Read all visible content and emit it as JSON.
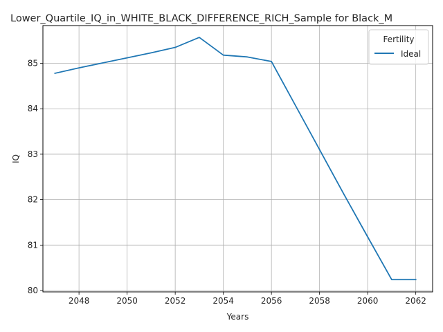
{
  "chart_data": {
    "type": "line",
    "title": "Lower_Quartile_IQ_in_WHITE_BLACK_DIFFERENCE_RICH_Sample for Black_M",
    "xlabel": "Years",
    "ylabel": "IQ",
    "xlim": [
      2046.5,
      2062.7
    ],
    "ylim": [
      79.97,
      85.83
    ],
    "xticks": [
      2048,
      2050,
      2052,
      2054,
      2056,
      2058,
      2060,
      2062
    ],
    "yticks": [
      80,
      81,
      82,
      83,
      84,
      85
    ],
    "grid": true,
    "legend": {
      "title": "Fertility",
      "placement": "upper-right"
    },
    "series": [
      {
        "name": "Ideal",
        "color": "#1f77b4",
        "x": [
          2047,
          2048,
          2049,
          2050,
          2051,
          2052,
          2053,
          2054,
          2055,
          2056,
          2057,
          2058,
          2059,
          2060,
          2061,
          2062
        ],
        "y": [
          84.78,
          84.9,
          85.01,
          85.12,
          85.23,
          85.35,
          85.57,
          85.18,
          85.14,
          85.04,
          84.07,
          83.1,
          82.13,
          81.18,
          80.24,
          80.24
        ]
      }
    ]
  }
}
